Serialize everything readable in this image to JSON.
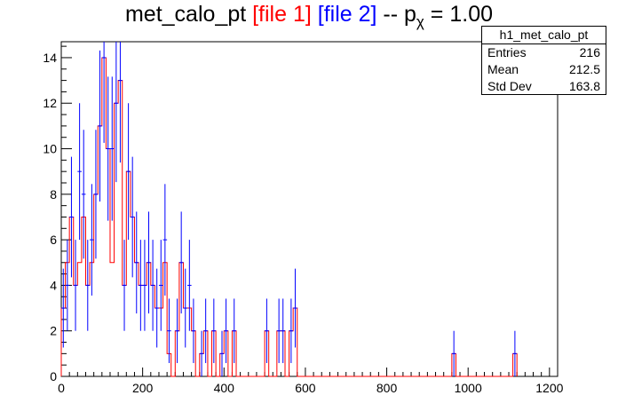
{
  "title": {
    "prefix": "met_calo_pt ",
    "file1": "[file 1]",
    "file2": "[file 2]",
    "mid": " -- p",
    "sub": "χ",
    "suffix": " = 1.00"
  },
  "colors": {
    "file1": "#ff0000",
    "file2": "#0000ff",
    "axis": "#000000"
  },
  "stats": {
    "name": "h1_met_calo_pt",
    "entries_label": "Entries",
    "entries_value": "216",
    "mean_label": "Mean",
    "mean_value": "212.5",
    "std_label": "Std Dev",
    "std_value": "163.8"
  },
  "chart_data": {
    "type": "histogram",
    "bin_edges_start": 0,
    "bin_width": 10,
    "xlim": [
      0,
      1220
    ],
    "ylim": [
      0,
      14.7
    ],
    "xticks": [
      0,
      200,
      400,
      600,
      800,
      1000,
      1200
    ],
    "yticks": [
      0,
      2,
      4,
      6,
      8,
      10,
      12,
      14
    ],
    "grid": false,
    "series": [
      {
        "name": "file 1",
        "values": [
          3,
          5,
          7,
          4,
          5,
          7,
          4,
          5,
          8,
          11,
          14,
          10,
          5,
          12,
          13,
          4,
          9,
          7,
          5,
          4,
          4,
          5,
          4,
          3,
          3,
          5,
          1,
          0,
          2,
          5,
          3,
          3,
          2,
          0,
          1,
          2,
          0,
          2,
          0,
          1,
          2,
          0,
          2,
          0,
          0,
          0,
          0,
          0,
          0,
          0,
          2,
          0,
          0,
          2,
          2,
          0,
          2,
          3,
          0,
          0,
          0,
          0,
          0,
          0,
          0,
          0,
          0,
          0,
          0,
          0,
          0,
          0,
          0,
          0,
          0,
          0,
          0,
          0,
          0,
          0,
          0,
          0,
          0,
          0,
          0,
          0,
          0,
          0,
          0,
          0,
          0,
          0,
          0,
          0,
          0,
          0,
          1,
          0,
          0,
          0,
          0,
          0,
          0,
          0,
          0,
          0,
          0,
          0,
          0,
          0,
          0,
          1
        ]
      },
      {
        "name": "file 2",
        "values": [
          3,
          4,
          7,
          4,
          9,
          8,
          4,
          6,
          8,
          11,
          14,
          10,
          10,
          12,
          13,
          4,
          9,
          7,
          5,
          4,
          4,
          5,
          4,
          3,
          4,
          6,
          2,
          0,
          2,
          5,
          3,
          4,
          2,
          0,
          1,
          2,
          0,
          2,
          0,
          1,
          2,
          0,
          2,
          0,
          0,
          0,
          0,
          0,
          0,
          0,
          2,
          0,
          0,
          2,
          2,
          0,
          2,
          3,
          0,
          0,
          0,
          0,
          0,
          0,
          0,
          0,
          0,
          0,
          0,
          0,
          0,
          0,
          0,
          0,
          0,
          0,
          0,
          0,
          0,
          0,
          0,
          0,
          0,
          0,
          0,
          0,
          0,
          0,
          0,
          0,
          0,
          0,
          0,
          0,
          0,
          0,
          1,
          0,
          0,
          0,
          0,
          0,
          0,
          0,
          0,
          0,
          0,
          0,
          0,
          0,
          0,
          1
        ]
      }
    ]
  }
}
